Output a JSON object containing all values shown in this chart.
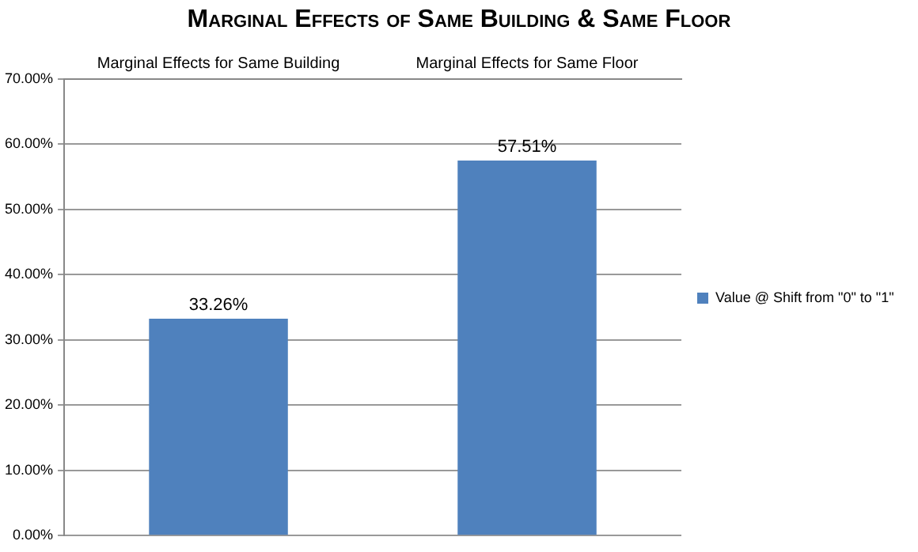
{
  "chart_data": {
    "type": "bar",
    "title": "Marginal Effects of Same Building & Same Floor",
    "categories": [
      "Marginal Effects for Same Building",
      "Marginal Effects for Same Floor"
    ],
    "series": [
      {
        "name": "Value @ Shift from \"0\" to \"1\"",
        "color": "#4f81bd",
        "values": [
          33.26,
          57.51
        ],
        "value_labels": [
          "33.26%",
          "57.51%"
        ]
      }
    ],
    "ylim": [
      0,
      70
    ],
    "yticks": [
      {
        "value": 0,
        "label": "0.00%"
      },
      {
        "value": 10,
        "label": "10.00%"
      },
      {
        "value": 20,
        "label": "20.00%"
      },
      {
        "value": 30,
        "label": "30.00%"
      },
      {
        "value": 40,
        "label": "40.00%"
      },
      {
        "value": 50,
        "label": "50.00%"
      },
      {
        "value": 60,
        "label": "60.00%"
      },
      {
        "value": 70,
        "label": "70.00%"
      }
    ],
    "grid": "y",
    "legend": "right"
  }
}
